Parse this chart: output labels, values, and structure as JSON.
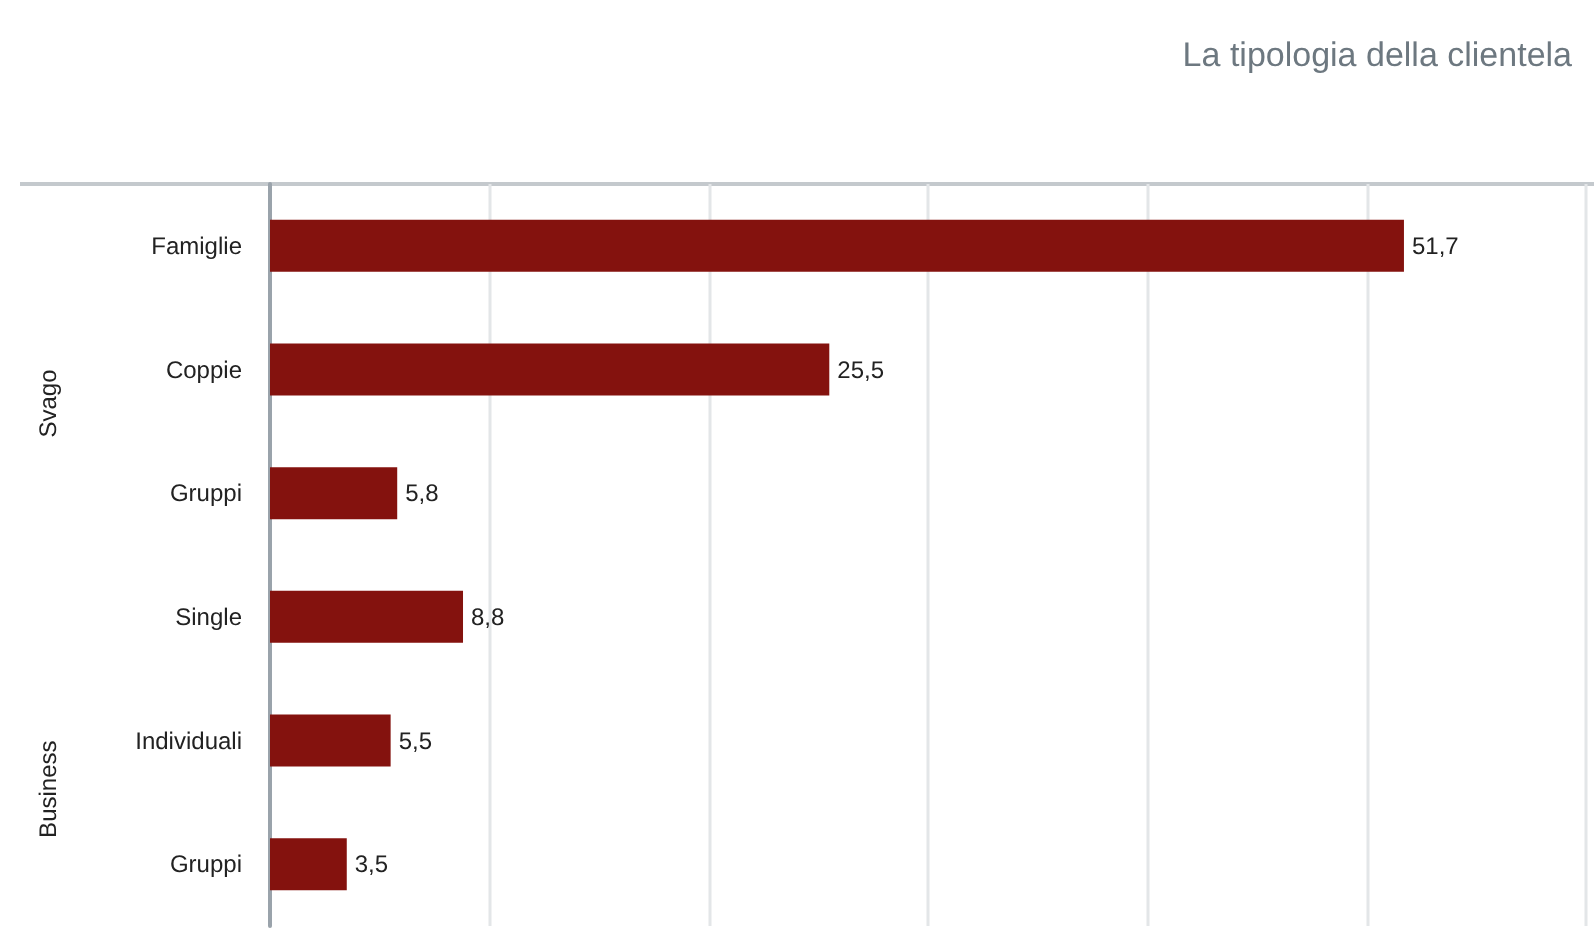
{
  "chart_data": {
    "type": "bar",
    "orientation": "horizontal",
    "title": "La tipologia della clientela",
    "categories": [
      "Famiglie",
      "Coppie",
      "Gruppi",
      "Single",
      "Individuali",
      "Gruppi"
    ],
    "values": [
      51.7,
      25.5,
      5.8,
      8.8,
      5.5,
      3.5
    ],
    "value_labels": [
      "51,7",
      "25,5",
      "5,8",
      "8,8",
      "5,5",
      "3,5"
    ],
    "color": "#84120e",
    "xlim": [
      0,
      60
    ],
    "xticks": [
      {
        "value": 0,
        "label": null
      },
      {
        "value": 10,
        "label": null
      },
      {
        "value": 20,
        "label": null
      },
      {
        "value": 30,
        "label": null
      },
      {
        "value": 40,
        "label": null
      },
      {
        "value": 50,
        "label": null
      },
      {
        "value": 60,
        "label": null
      }
    ],
    "grid": "x",
    "tick_labels": "y",
    "annotations": [
      "Svago",
      "Business"
    ]
  }
}
